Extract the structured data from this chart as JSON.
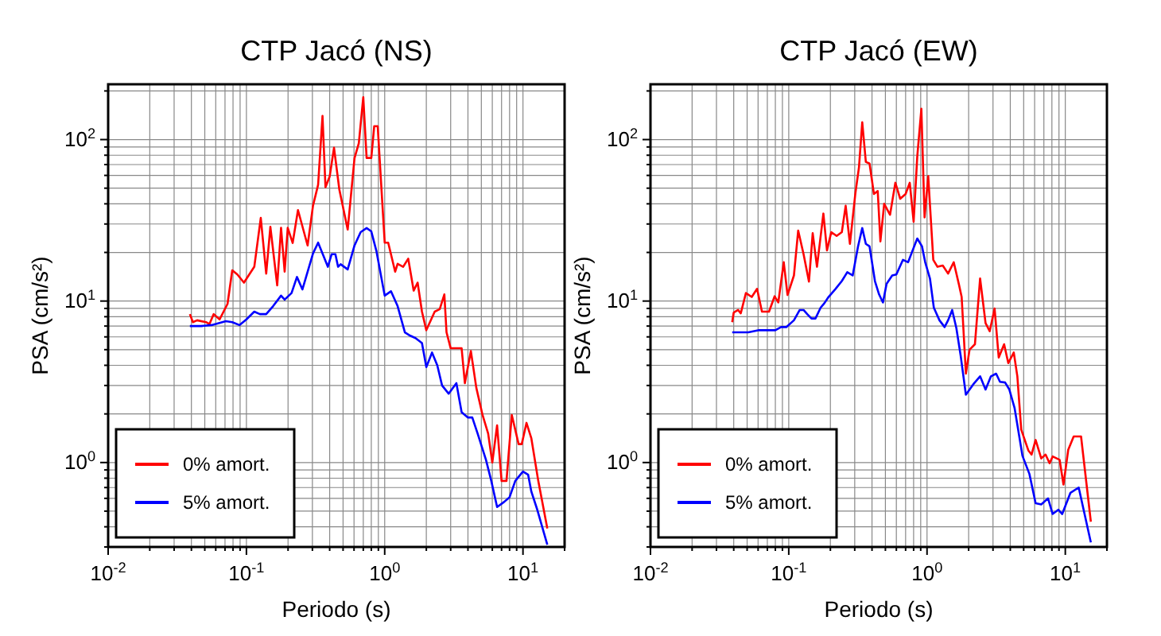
{
  "chart_data": [
    {
      "type": "line",
      "title": "CTP Jacó (NS)",
      "xlabel": "Periodo (s)",
      "ylabel": "PSA (cm/s²)",
      "log": "xy",
      "grid": true,
      "legend": "bottom left",
      "line_style": "solid",
      "marker": "none",
      "xlim": [
        0.01,
        20
      ],
      "ylim": [
        0.3,
        220
      ],
      "xticks": [
        {
          "value": 0.01,
          "label": "10$^{-2}$"
        },
        {
          "value": 0.02,
          "label": null
        },
        {
          "value": 0.03,
          "label": null
        },
        {
          "value": 0.04,
          "label": null
        },
        {
          "value": 0.05,
          "label": null
        },
        {
          "value": 0.06,
          "label": null
        },
        {
          "value": 0.07,
          "label": null
        },
        {
          "value": 0.08,
          "label": null
        },
        {
          "value": 0.09,
          "label": null
        },
        {
          "value": 0.1,
          "label": "10$^{-1}$"
        },
        {
          "value": 0.2,
          "label": null
        },
        {
          "value": 0.3,
          "label": null
        },
        {
          "value": 0.4,
          "label": null
        },
        {
          "value": 0.5,
          "label": null
        },
        {
          "value": 0.6,
          "label": null
        },
        {
          "value": 0.7,
          "label": null
        },
        {
          "value": 0.8,
          "label": null
        },
        {
          "value": 0.9,
          "label": null
        },
        {
          "value": 1,
          "label": "10$^{0}$"
        },
        {
          "value": 2,
          "label": null
        },
        {
          "value": 3,
          "label": null
        },
        {
          "value": 4,
          "label": null
        },
        {
          "value": 5,
          "label": null
        },
        {
          "value": 6,
          "label": null
        },
        {
          "value": 7,
          "label": null
        },
        {
          "value": 8,
          "label": null
        },
        {
          "value": 9,
          "label": null
        },
        {
          "value": 10,
          "label": "10$^{1}$"
        },
        {
          "value": 20,
          "label": null
        }
      ],
      "yticks": [
        {
          "value": 0.3,
          "label": null
        },
        {
          "value": 0.4,
          "label": null
        },
        {
          "value": 0.5,
          "label": null
        },
        {
          "value": 0.6,
          "label": null
        },
        {
          "value": 0.7,
          "label": null
        },
        {
          "value": 0.8,
          "label": null
        },
        {
          "value": 0.9,
          "label": null
        },
        {
          "value": 1,
          "label": "10$^{0}$"
        },
        {
          "value": 2,
          "label": null
        },
        {
          "value": 3,
          "label": null
        },
        {
          "value": 4,
          "label": null
        },
        {
          "value": 5,
          "label": null
        },
        {
          "value": 6,
          "label": null
        },
        {
          "value": 7,
          "label": null
        },
        {
          "value": 8,
          "label": null
        },
        {
          "value": 9,
          "label": null
        },
        {
          "value": 10,
          "label": "10$^{1}$"
        },
        {
          "value": 20,
          "label": null
        },
        {
          "value": 30,
          "label": null
        },
        {
          "value": 40,
          "label": null
        },
        {
          "value": 50,
          "label": null
        },
        {
          "value": 60,
          "label": null
        },
        {
          "value": 70,
          "label": null
        },
        {
          "value": 80,
          "label": null
        },
        {
          "value": 90,
          "label": null
        },
        {
          "value": 100,
          "label": "10$^{2}$"
        },
        {
          "value": 200,
          "label": null
        }
      ],
      "series": [
        {
          "name": "0% amort.",
          "color": "#ff0000",
          "x": [
            0.039,
            0.041,
            0.044,
            0.051,
            0.054,
            0.058,
            0.064,
            0.073,
            0.079,
            0.086,
            0.096,
            0.114,
            0.127,
            0.139,
            0.149,
            0.167,
            0.178,
            0.189,
            0.199,
            0.216,
            0.236,
            0.277,
            0.303,
            0.33,
            0.355,
            0.373,
            0.4,
            0.43,
            0.47,
            0.54,
            0.605,
            0.65,
            0.7,
            0.74,
            0.8,
            0.84,
            0.89,
            1.0,
            1.06,
            1.19,
            1.24,
            1.36,
            1.48,
            1.62,
            1.73,
            1.86,
            2.0,
            2.3,
            2.5,
            2.7,
            2.8,
            3.0,
            3.4,
            3.6,
            3.8,
            4.2,
            4.6,
            5.1,
            5.6,
            6.0,
            6.5,
            7.0,
            7.6,
            8.3,
            9.3,
            9.8,
            10.6,
            11.5,
            12.9,
            15.0
          ],
          "values": [
            8.3,
            7.4,
            7.6,
            7.4,
            7.2,
            8.3,
            7.7,
            9.6,
            15.5,
            14.6,
            13,
            16.3,
            32.7,
            14.8,
            28.8,
            12.5,
            28.4,
            15.2,
            28.4,
            22.9,
            36.6,
            22.1,
            38.9,
            52.5,
            140,
            50.7,
            59,
            89,
            49,
            27.7,
            76.7,
            95,
            183,
            77,
            77,
            121,
            121,
            23,
            23,
            15.2,
            17,
            16.3,
            18.3,
            11.6,
            13,
            8.6,
            6.6,
            8.6,
            8.9,
            11,
            6.4,
            5.1,
            5.1,
            5.1,
            3.1,
            4.9,
            2.9,
            1.97,
            1.51,
            1.0,
            1.7,
            0.77,
            0.77,
            1.97,
            1.3,
            1.3,
            1.76,
            1.41,
            0.77,
            0.39
          ]
        },
        {
          "name": "5% amort.",
          "color": "#0000ff",
          "x": [
            0.039,
            0.047,
            0.056,
            0.071,
            0.079,
            0.089,
            0.1,
            0.114,
            0.125,
            0.139,
            0.156,
            0.178,
            0.189,
            0.212,
            0.232,
            0.254,
            0.303,
            0.33,
            0.361,
            0.388,
            0.413,
            0.44,
            0.46,
            0.48,
            0.54,
            0.605,
            0.67,
            0.74,
            0.8,
            0.87,
            1.0,
            1.11,
            1.24,
            1.4,
            1.53,
            1.67,
            1.86,
            2.0,
            2.2,
            2.4,
            2.6,
            2.9,
            3.3,
            3.6,
            4.0,
            4.3,
            4.7,
            5.4,
            5.9,
            6.5,
            7.3,
            8.0,
            8.8,
            10.0,
            10.9,
            11.5,
            12.6,
            15.0
          ],
          "values": [
            7.0,
            7.0,
            7.1,
            7.5,
            7.4,
            7.1,
            7.7,
            8.6,
            8.3,
            8.3,
            9.3,
            10.8,
            10.2,
            11.2,
            14.1,
            11.8,
            19.7,
            23,
            19,
            16.3,
            19.5,
            19.5,
            16.3,
            16.9,
            15.7,
            22.1,
            26.7,
            28.3,
            27,
            20.5,
            10.8,
            11.5,
            9.3,
            6.4,
            6.1,
            5.9,
            5.5,
            3.9,
            4.8,
            4.0,
            3.0,
            2.67,
            3.1,
            2.05,
            1.9,
            1.9,
            1.51,
            1.04,
            0.77,
            0.53,
            0.57,
            0.61,
            0.77,
            0.88,
            0.84,
            0.66,
            0.52,
            0.31
          ]
        }
      ]
    },
    {
      "type": "line",
      "title": "CTP Jacó (EW)",
      "xlabel": "Periodo (s)",
      "ylabel": "PSA (cm/s²)",
      "log": "xy",
      "grid": true,
      "legend": "bottom left",
      "line_style": "solid",
      "marker": "none",
      "xlim": [
        0.01,
        20
      ],
      "ylim": [
        0.3,
        220
      ],
      "xticks": [
        {
          "value": 0.01,
          "label": "10$^{-2}$"
        },
        {
          "value": 0.02,
          "label": null
        },
        {
          "value": 0.03,
          "label": null
        },
        {
          "value": 0.04,
          "label": null
        },
        {
          "value": 0.05,
          "label": null
        },
        {
          "value": 0.06,
          "label": null
        },
        {
          "value": 0.07,
          "label": null
        },
        {
          "value": 0.08,
          "label": null
        },
        {
          "value": 0.09,
          "label": null
        },
        {
          "value": 0.1,
          "label": "10$^{-1}$"
        },
        {
          "value": 0.2,
          "label": null
        },
        {
          "value": 0.3,
          "label": null
        },
        {
          "value": 0.4,
          "label": null
        },
        {
          "value": 0.5,
          "label": null
        },
        {
          "value": 0.6,
          "label": null
        },
        {
          "value": 0.7,
          "label": null
        },
        {
          "value": 0.8,
          "label": null
        },
        {
          "value": 0.9,
          "label": null
        },
        {
          "value": 1,
          "label": "10$^{0}$"
        },
        {
          "value": 2,
          "label": null
        },
        {
          "value": 3,
          "label": null
        },
        {
          "value": 4,
          "label": null
        },
        {
          "value": 5,
          "label": null
        },
        {
          "value": 6,
          "label": null
        },
        {
          "value": 7,
          "label": null
        },
        {
          "value": 8,
          "label": null
        },
        {
          "value": 9,
          "label": null
        },
        {
          "value": 10,
          "label": "10$^{1}$"
        },
        {
          "value": 20,
          "label": null
        }
      ],
      "yticks": [
        {
          "value": 0.3,
          "label": null
        },
        {
          "value": 0.4,
          "label": null
        },
        {
          "value": 0.5,
          "label": null
        },
        {
          "value": 0.6,
          "label": null
        },
        {
          "value": 0.7,
          "label": null
        },
        {
          "value": 0.8,
          "label": null
        },
        {
          "value": 0.9,
          "label": null
        },
        {
          "value": 1,
          "label": "10$^{0}$"
        },
        {
          "value": 2,
          "label": null
        },
        {
          "value": 3,
          "label": null
        },
        {
          "value": 4,
          "label": null
        },
        {
          "value": 5,
          "label": null
        },
        {
          "value": 6,
          "label": null
        },
        {
          "value": 7,
          "label": null
        },
        {
          "value": 8,
          "label": null
        },
        {
          "value": 9,
          "label": null
        },
        {
          "value": 10,
          "label": "10$^{1}$"
        },
        {
          "value": 20,
          "label": null
        },
        {
          "value": 30,
          "label": null
        },
        {
          "value": 40,
          "label": null
        },
        {
          "value": 50,
          "label": null
        },
        {
          "value": 60,
          "label": null
        },
        {
          "value": 70,
          "label": null
        },
        {
          "value": 80,
          "label": null
        },
        {
          "value": 90,
          "label": null
        },
        {
          "value": 100,
          "label": "10$^{2}$"
        },
        {
          "value": 200,
          "label": null
        }
      ],
      "series": [
        {
          "name": "0% amort.",
          "color": "#ff0000",
          "x": [
            0.039,
            0.04,
            0.043,
            0.045,
            0.049,
            0.054,
            0.059,
            0.064,
            0.072,
            0.079,
            0.084,
            0.092,
            0.098,
            0.109,
            0.117,
            0.128,
            0.14,
            0.149,
            0.16,
            0.178,
            0.189,
            0.203,
            0.222,
            0.242,
            0.258,
            0.277,
            0.303,
            0.322,
            0.34,
            0.361,
            0.384,
            0.413,
            0.44,
            0.46,
            0.49,
            0.54,
            0.59,
            0.64,
            0.7,
            0.75,
            0.8,
            0.85,
            0.91,
            0.96,
            1.02,
            1.11,
            1.19,
            1.3,
            1.42,
            1.56,
            1.7,
            1.78,
            1.91,
            2.03,
            2.22,
            2.42,
            2.65,
            2.84,
            3.08,
            3.3,
            3.61,
            3.87,
            4.24,
            4.5,
            4.8,
            5.4,
            5.7,
            6.1,
            6.7,
            7.2,
            7.7,
            8.1,
            9.1,
            9.7,
            10.5,
            11.5,
            13,
            15.3
          ],
          "values": [
            7.4,
            8.5,
            8.8,
            8.4,
            11.2,
            10.6,
            11.9,
            8.6,
            8.6,
            10.7,
            9.8,
            17.4,
            10.9,
            14.4,
            27.3,
            19.5,
            13.2,
            26.3,
            16.3,
            34.8,
            20.6,
            26.7,
            25.3,
            26.7,
            38.9,
            22.6,
            46.2,
            67.4,
            128,
            72.8,
            71,
            46,
            48,
            23.4,
            40,
            34.2,
            54,
            43,
            46,
            54,
            31,
            78.5,
            155,
            33,
            59.4,
            18,
            16.3,
            16.6,
            14.8,
            17.4,
            12.7,
            10.6,
            3.55,
            5.0,
            5.4,
            13.8,
            7.3,
            6.5,
            9.0,
            4.47,
            5.4,
            4.13,
            4.8,
            3.42,
            1.6,
            1.19,
            1.12,
            1.38,
            1.06,
            1.12,
            0.99,
            1.09,
            1.04,
            0.73,
            1.2,
            1.45,
            1.45,
            0.43
          ]
        },
        {
          "name": "5% amort.",
          "color": "#0000ff",
          "x": [
            0.039,
            0.051,
            0.061,
            0.08,
            0.088,
            0.096,
            0.109,
            0.12,
            0.128,
            0.136,
            0.146,
            0.156,
            0.17,
            0.181,
            0.194,
            0.218,
            0.242,
            0.265,
            0.29,
            0.317,
            0.34,
            0.361,
            0.384,
            0.42,
            0.45,
            0.48,
            0.51,
            0.56,
            0.6,
            0.67,
            0.73,
            0.78,
            0.85,
            0.92,
            0.97,
            1.05,
            1.12,
            1.23,
            1.34,
            1.42,
            1.52,
            1.63,
            1.75,
            1.91,
            2.16,
            2.42,
            2.65,
            2.9,
            3.16,
            3.37,
            3.67,
            3.94,
            4.3,
            4.9,
            5.5,
            6.1,
            6.7,
            7.5,
            8.1,
            8.9,
            9.5,
            10.9,
            12.5,
            15.3
          ],
          "values": [
            6.4,
            6.4,
            6.6,
            6.6,
            6.9,
            6.9,
            7.6,
            8.8,
            8.8,
            8.3,
            7.8,
            7.8,
            9.1,
            9.7,
            10.6,
            11.9,
            13.3,
            15.1,
            14.4,
            21.8,
            28.3,
            22.6,
            21.8,
            13.3,
            11,
            9.8,
            12.8,
            14.4,
            14.6,
            18,
            17.4,
            20.2,
            24.4,
            21.8,
            17.4,
            13.8,
            9.1,
            7.6,
            6.9,
            7.6,
            8.8,
            6.8,
            4.6,
            2.63,
            3.05,
            3.42,
            2.83,
            3.42,
            3.55,
            3.16,
            3.13,
            2.83,
            2.17,
            1.1,
            0.85,
            0.56,
            0.55,
            0.6,
            0.48,
            0.51,
            0.48,
            0.65,
            0.7,
            0.32
          ]
        }
      ]
    }
  ]
}
